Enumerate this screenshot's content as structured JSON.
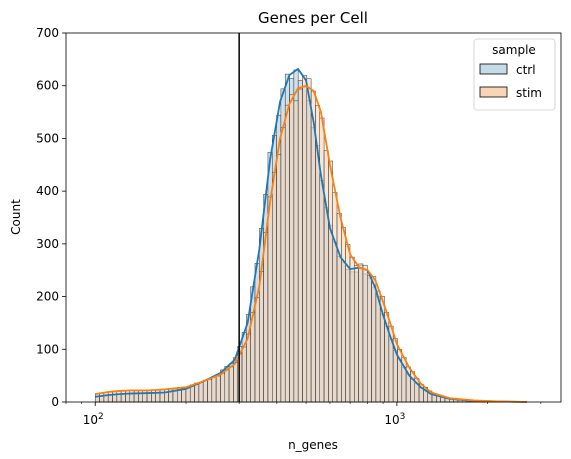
{
  "chart_data": {
    "type": "histogram",
    "title": "Genes per Cell",
    "xlabel": "n_genes",
    "ylabel": "Count",
    "xscale": "log",
    "xlim": [
      80,
      3500
    ],
    "ylim": [
      0,
      700
    ],
    "yticks": [
      0,
      100,
      200,
      300,
      400,
      500,
      600,
      700
    ],
    "xticks": [
      {
        "value": 100,
        "base": "10",
        "exp": "2"
      },
      {
        "value": 1000,
        "base": "10",
        "exp": "3"
      }
    ],
    "threshold_line": {
      "x": 300
    },
    "legend": {
      "title": "sample",
      "position": "top-right"
    },
    "kde_x": [
      100,
      110,
      120,
      130,
      150,
      170,
      200,
      230,
      260,
      290,
      320,
      350,
      380,
      410,
      440,
      470,
      500,
      530,
      560,
      600,
      650,
      700,
      750,
      800,
      850,
      900,
      950,
      1000,
      1100,
      1200,
      1300,
      1500,
      1800,
      2200,
      2700
    ],
    "series": [
      {
        "name": "ctrl",
        "line_color": "#1f77b4",
        "fill_color": "#c6dbe8",
        "kde": [
          10,
          13,
          15,
          16,
          17,
          18,
          25,
          40,
          55,
          80,
          150,
          290,
          460,
          570,
          620,
          632,
          610,
          530,
          430,
          330,
          275,
          252,
          255,
          250,
          215,
          165,
          125,
          90,
          50,
          28,
          15,
          6,
          2,
          1,
          0
        ]
      },
      {
        "name": "stim",
        "line_color": "#ff7f0e",
        "fill_color": "#f9d5b8",
        "kde": [
          15,
          19,
          21,
          22,
          22,
          24,
          28,
          40,
          52,
          72,
          120,
          220,
          380,
          500,
          565,
          595,
          600,
          590,
          550,
          450,
          350,
          280,
          255,
          250,
          230,
          190,
          150,
          110,
          65,
          35,
          18,
          7,
          3,
          1,
          0
        ]
      }
    ]
  }
}
